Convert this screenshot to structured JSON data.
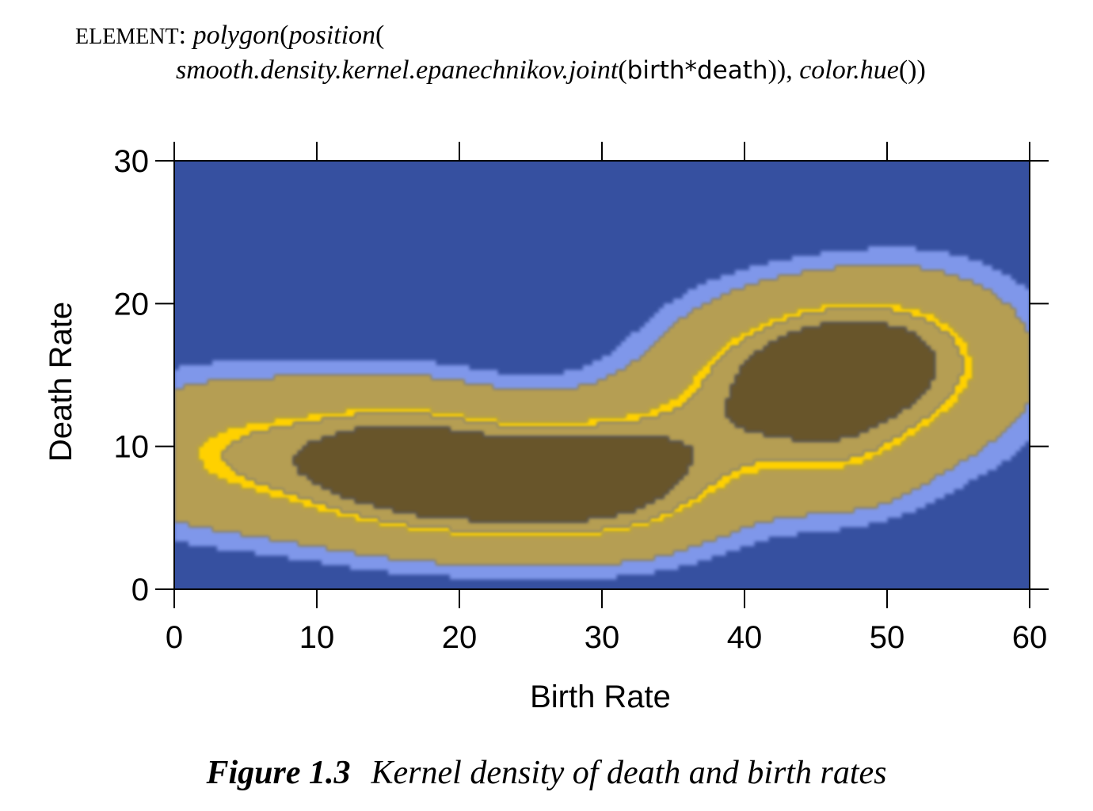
{
  "spec": {
    "keyword": "ELEMENT",
    "colon": ":",
    "fn_polygon": "polygon",
    "paren_open": "(",
    "fn_position": "position",
    "fn_smooth": "smooth.density.kernel.epanechnikov.joint",
    "var_birth": "birth",
    "op_cross": "*",
    "var_death": "death",
    "close_parens": ")),",
    "fn_color": "color.hue",
    "call_end": "())"
  },
  "caption": {
    "number": "Figure 1.3",
    "text": "Kernel density of death and birth rates"
  },
  "chart_data": {
    "type": "heatmap",
    "xlabel": "Birth Rate",
    "ylabel": "Death Rate",
    "xlim": [
      0,
      60
    ],
    "ylim": [
      0,
      30
    ],
    "xticks": [
      0,
      10,
      20,
      30,
      40,
      50,
      60
    ],
    "yticks": [
      0,
      10,
      20,
      30
    ],
    "colors": {
      "background": "#3650a0",
      "low": "#7f97ea",
      "mid": "#b59e52",
      "high": "#ffd100",
      "peak": "#67552a"
    },
    "density_modes": [
      {
        "x": 17,
        "y": 9,
        "level": "peak"
      },
      {
        "x": 28,
        "y": 7,
        "level": "peak"
      },
      {
        "x": 46,
        "y": 16,
        "level": "high"
      }
    ]
  }
}
